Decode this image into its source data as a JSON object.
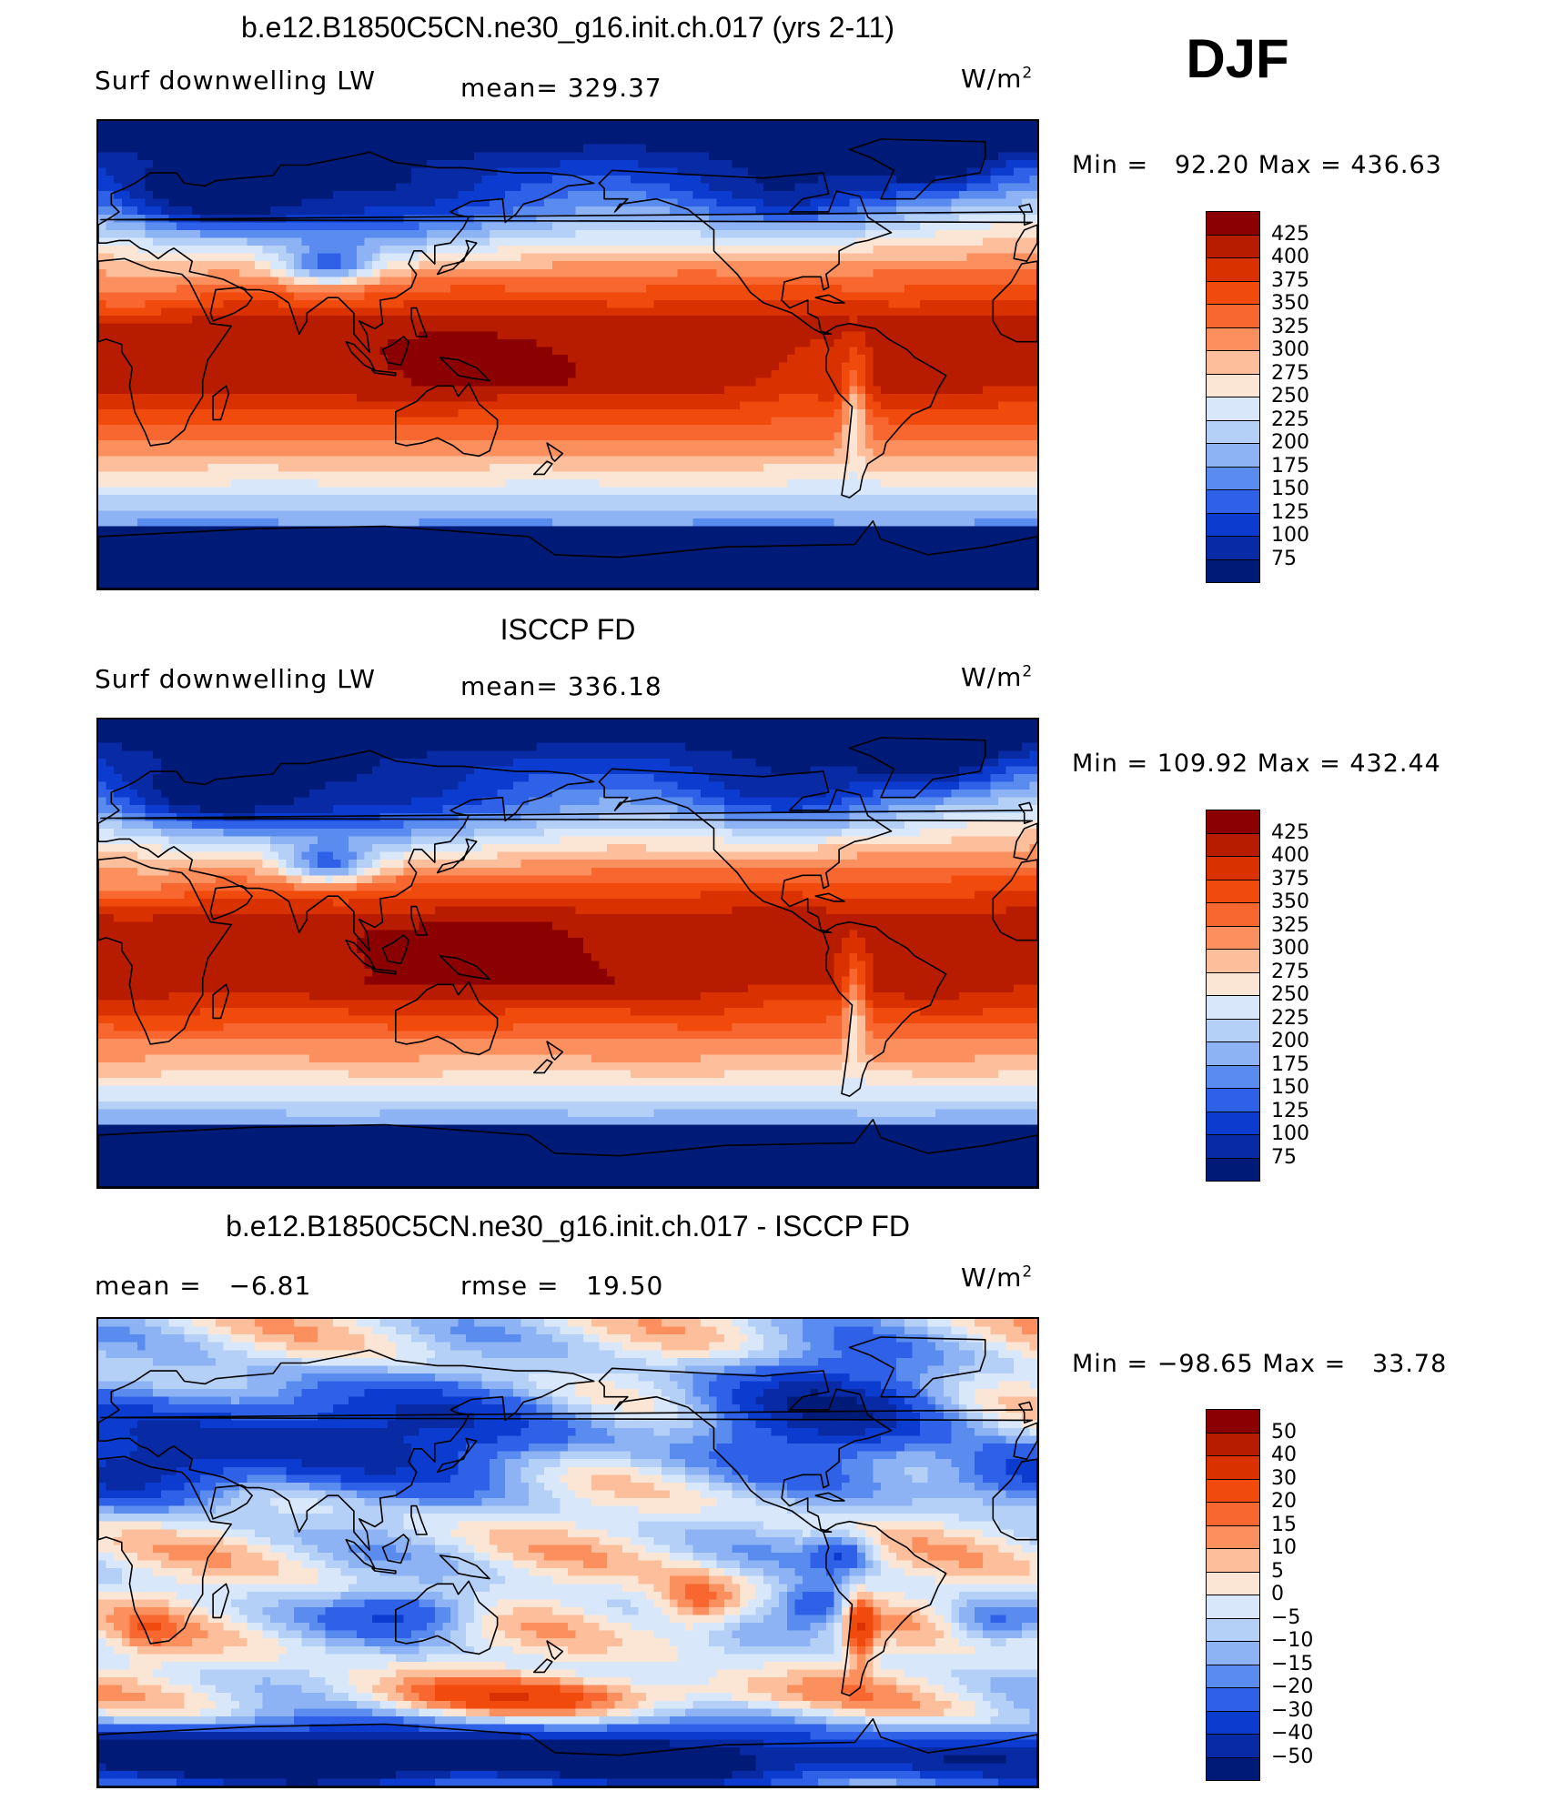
{
  "season": "DJF",
  "panels": [
    {
      "title": "b.e12.B1850C5CN.ne30_g16.init.ch.017 (yrs 2-11)",
      "left_label": "Surf downwelling LW",
      "center_label": "mean= 329.37",
      "unit": "W/m",
      "unit_sup": "2",
      "minmax": "Min =   92.20 Max = 436.63",
      "colorbar_labels": [
        "425",
        "400",
        "375",
        "350",
        "325",
        "300",
        "275",
        "250",
        "225",
        "200",
        "175",
        "150",
        "125",
        "100",
        "75"
      ]
    },
    {
      "title": "ISCCP FD",
      "left_label": "Surf downwelling LW",
      "center_label": "mean= 336.18",
      "unit": "W/m",
      "unit_sup": "2",
      "minmax": "Min = 109.92 Max = 432.44",
      "colorbar_labels": [
        "425",
        "400",
        "375",
        "350",
        "325",
        "300",
        "275",
        "250",
        "225",
        "200",
        "175",
        "150",
        "125",
        "100",
        "75"
      ]
    },
    {
      "title": "b.e12.B1850C5CN.ne30_g16.init.ch.017 - ISCCP FD",
      "left_label": "mean =   −6.81",
      "center_label": "rmse =   19.50",
      "unit": "W/m",
      "unit_sup": "2",
      "minmax": "Min = −98.65 Max =   33.78",
      "colorbar_labels": [
        "50",
        "40",
        "30",
        "20",
        "15",
        "10",
        "5",
        "0",
        "−5",
        "−10",
        "−15",
        "−20",
        "−30",
        "−40",
        "−50"
      ]
    }
  ],
  "colorbar_colors": [
    "#8b0000",
    "#b71c00",
    "#d93200",
    "#f04a0c",
    "#f7672f",
    "#fb8f5d",
    "#fdbe9c",
    "#fbe6d6",
    "#d8e8fa",
    "#b5d0f7",
    "#8eb3f5",
    "#5a8cf0",
    "#2e61e8",
    "#0b3ccf",
    "#082aa4",
    "#001a78"
  ],
  "colors": {
    "warm_core": "#c42a00",
    "warm_mid": "#f25a1c",
    "warm_light": "#fbb08a",
    "neutral": "#fbe6d6",
    "cool_light": "#b5d0f7",
    "cool_mid": "#4a7cef",
    "cool_dark": "#0a33d0"
  }
}
